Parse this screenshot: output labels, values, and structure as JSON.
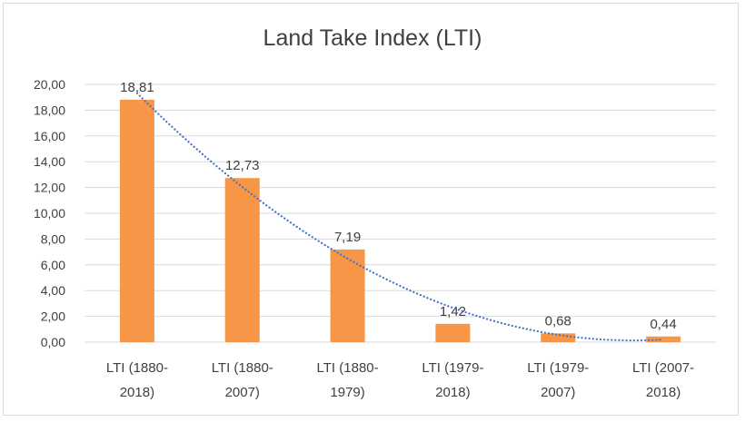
{
  "chart_data": {
    "type": "bar",
    "title": "Land Take Index (LTI)",
    "categories": [
      [
        "LTI (1880-",
        "2018)"
      ],
      [
        "LTI (1880-",
        "2007)"
      ],
      [
        "LTI (1880-",
        "1979)"
      ],
      [
        "LTI (1979-",
        "2018)"
      ],
      [
        "LTI (1979-",
        "2007)"
      ],
      [
        "LTI (2007-",
        "2018)"
      ]
    ],
    "values": [
      18.81,
      12.73,
      7.19,
      1.42,
      0.68,
      0.44
    ],
    "value_labels": [
      "18,81",
      "12,73",
      "7,19",
      "1,42",
      "0,68",
      "0,44"
    ],
    "ylim": [
      0,
      20
    ],
    "yticks": [
      "0,00",
      "2,00",
      "4,00",
      "6,00",
      "8,00",
      "10,00",
      "12,00",
      "14,00",
      "16,00",
      "18,00",
      "20,00"
    ],
    "xlabel": "",
    "ylabel": "",
    "grid": true,
    "trendline": {
      "type": "polynomial",
      "style": "dotted"
    },
    "colors": {
      "bar": "#F79646",
      "grid": "#d9d9d9",
      "trend": "#4472C4"
    }
  }
}
